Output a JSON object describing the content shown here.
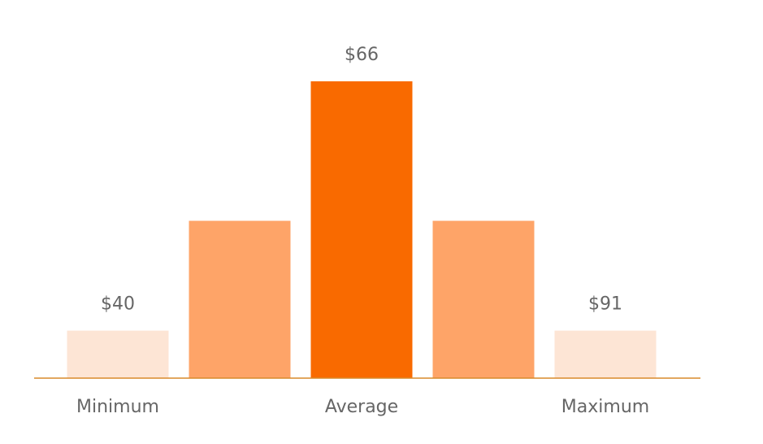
{
  "chart_data": {
    "type": "bar",
    "categories": [
      "Minimum",
      null,
      "Average",
      null,
      "Maximum"
    ],
    "values": [
      16,
      53,
      100,
      53,
      16
    ],
    "annotations": [
      "$40",
      null,
      "$66",
      null,
      "$91"
    ],
    "colors": [
      "#fde5d5",
      "#fea468",
      "#f96a00",
      "#fea468",
      "#fde5d5"
    ],
    "baseline_color": "#d98a2b",
    "ylim": [
      0,
      100
    ]
  }
}
